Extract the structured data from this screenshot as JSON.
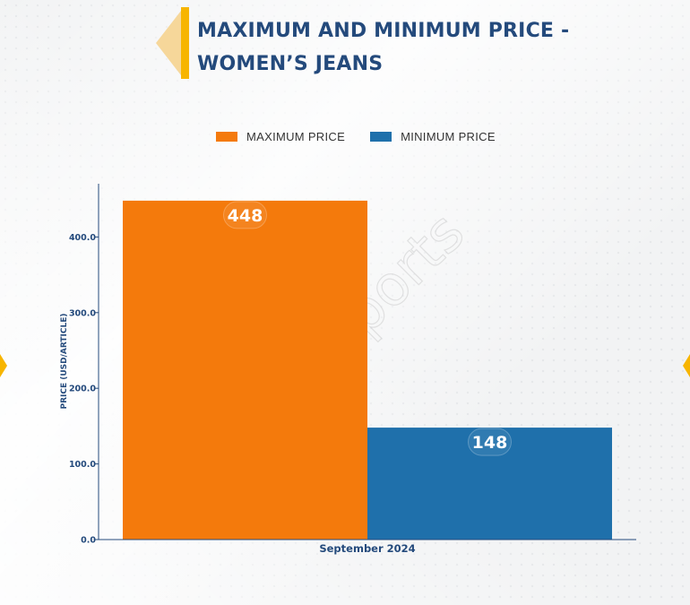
{
  "header": {
    "title_line1": "MAXIMUM AND MINIMUM PRICE -",
    "title_line2": "WOMEN’S JEANS"
  },
  "watermark": "D&J Reports",
  "colors": {
    "max": "#f47a0c",
    "min": "#1f70ab",
    "axis_text": "#244a7c",
    "accent": "#f7b500"
  },
  "chart_data": {
    "type": "bar",
    "title": "MAXIMUM AND MINIMUM PRICE - WOMEN’S JEANS",
    "categories": [
      "September 2024"
    ],
    "series": [
      {
        "name": "MAXIMUM PRICE",
        "values": [
          448
        ],
        "data_label": "448"
      },
      {
        "name": "MINIMUM PRICE",
        "values": [
          148
        ],
        "data_label": "148"
      }
    ],
    "xlabel": "",
    "ylabel": "PRICE (USD/ARTICLE)",
    "ylim": [
      0,
      470
    ],
    "yticks": [
      0,
      100,
      200,
      300,
      400
    ],
    "ytick_labels": [
      "0.0",
      "100.0",
      "200.0",
      "300.0",
      "400.0"
    ],
    "legend": "top-center",
    "grid": false
  }
}
